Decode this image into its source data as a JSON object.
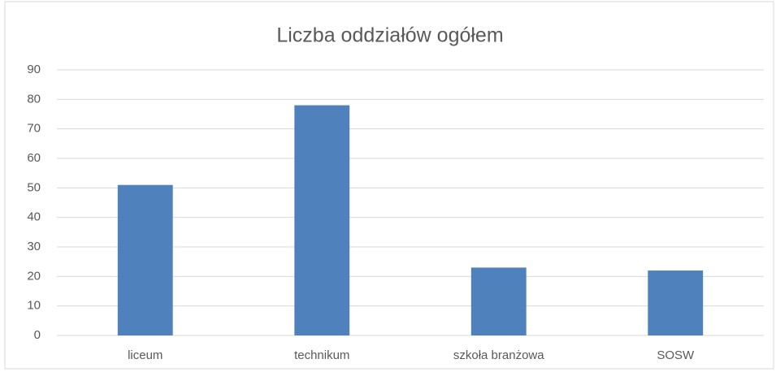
{
  "chart_data": {
    "type": "bar",
    "title": "Liczba oddziałów ogółem",
    "categories": [
      "liceum",
      "technikum",
      "szkoła branżowa",
      "SOSW"
    ],
    "values": [
      51,
      78,
      23,
      22
    ],
    "color": "#4f81bd",
    "ylim": [
      0,
      90
    ],
    "yticks": [
      0,
      10,
      20,
      30,
      40,
      50,
      60,
      70,
      80,
      90
    ],
    "grid": true
  }
}
